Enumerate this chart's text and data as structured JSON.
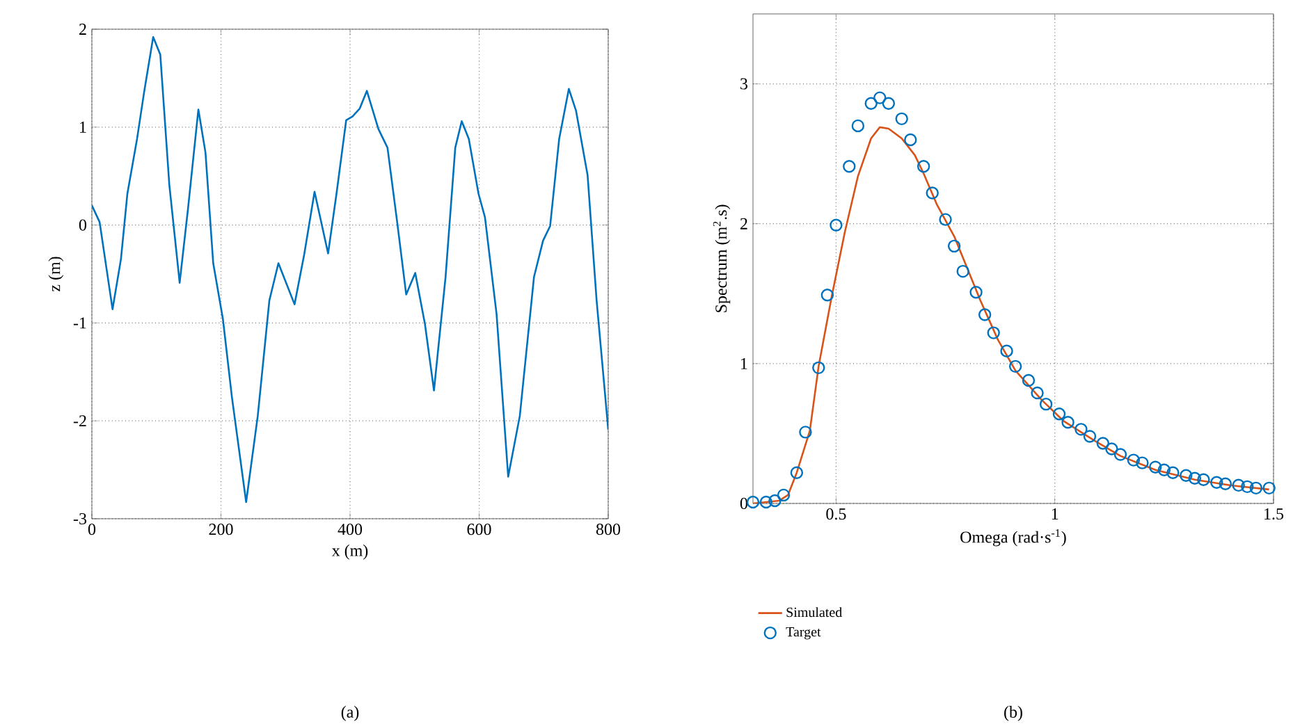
{
  "chart_data": [
    {
      "type": "line",
      "xlabel": "x (m)",
      "ylabel": "z (m)",
      "annotations": [
        "(a)"
      ],
      "xlim": [
        0,
        800
      ],
      "ylim": [
        -3,
        2
      ],
      "xticks": [
        0,
        200,
        400,
        600,
        800
      ],
      "yticks": [
        -3,
        -2,
        -1,
        0,
        1,
        2
      ],
      "grid": true,
      "series": [
        {
          "color": "#0072bd",
          "x": [
            0,
            12,
            32,
            45,
            55,
            70,
            81,
            95,
            106,
            120,
            136,
            149,
            165,
            176,
            188,
            203,
            217,
            239,
            257,
            275,
            289,
            314,
            329,
            345,
            366,
            379,
            394,
            404,
            415,
            426,
            444,
            458,
            473,
            487,
            501,
            516,
            530,
            548,
            563,
            573,
            584,
            599,
            609,
            627,
            645,
            663,
            685,
            699,
            710,
            724,
            739,
            750,
            768,
            782,
            800
          ],
          "values": [
            0.2,
            0.03,
            -0.86,
            -0.35,
            0.32,
            0.88,
            1.36,
            1.92,
            1.74,
            0.41,
            -0.59,
            0.17,
            1.18,
            0.74,
            -0.39,
            -0.96,
            -1.76,
            -2.83,
            -1.95,
            -0.77,
            -0.39,
            -0.81,
            -0.3,
            0.34,
            -0.29,
            0.32,
            1.07,
            1.11,
            1.19,
            1.37,
            0.98,
            0.79,
            0.03,
            -0.71,
            -0.49,
            -1.01,
            -1.69,
            -0.53,
            0.79,
            1.06,
            0.88,
            0.32,
            0.08,
            -0.91,
            -2.57,
            -1.95,
            -0.53,
            -0.16,
            -0.01,
            0.88,
            1.39,
            1.17,
            0.51,
            -0.77,
            -2.09
          ]
        }
      ]
    },
    {
      "type": "line",
      "xlabel": "Omega (rad·s$^{-1}$)",
      "ylabel": "Spectrum (m$^{2}$.s)",
      "annotations": [
        "(b)"
      ],
      "xlim": [
        0.31,
        1.5
      ],
      "ylim": [
        0,
        3.5
      ],
      "xticks": [
        0.5,
        1,
        1.5
      ],
      "yticks": [
        0,
        1,
        2,
        3
      ],
      "grid": true,
      "legend": "bottom",
      "series": [
        {
          "name": "Simulated",
          "type": "line",
          "color": "#d95319",
          "x": [
            0.31,
            0.34,
            0.37,
            0.39,
            0.41,
            0.44,
            0.46,
            0.49,
            0.52,
            0.55,
            0.58,
            0.6,
            0.62,
            0.65,
            0.68,
            0.7,
            0.73,
            0.77,
            0.8,
            0.83,
            0.87,
            0.91,
            0.97,
            1.02,
            1.09,
            1.15,
            1.23,
            1.32,
            1.4,
            1.49
          ],
          "values": [
            0,
            0.01,
            0.02,
            0.06,
            0.22,
            0.52,
            0.98,
            1.48,
            1.94,
            2.34,
            2.61,
            2.69,
            2.68,
            2.61,
            2.49,
            2.36,
            2.14,
            1.91,
            1.68,
            1.45,
            1.17,
            0.95,
            0.74,
            0.59,
            0.45,
            0.34,
            0.24,
            0.17,
            0.13,
            0.1
          ]
        },
        {
          "name": "Target",
          "type": "scatter",
          "marker": "circle",
          "color": "#0072bd",
          "x": [
            0.31,
            0.34,
            0.36,
            0.38,
            0.41,
            0.43,
            0.46,
            0.48,
            0.5,
            0.53,
            0.55,
            0.58,
            0.6,
            0.62,
            0.65,
            0.67,
            0.7,
            0.72,
            0.75,
            0.77,
            0.79,
            0.82,
            0.84,
            0.86,
            0.89,
            0.91,
            0.94,
            0.96,
            0.98,
            1.01,
            1.03,
            1.06,
            1.08,
            1.11,
            1.13,
            1.15,
            1.18,
            1.2,
            1.23,
            1.25,
            1.27,
            1.3,
            1.32,
            1.34,
            1.37,
            1.39,
            1.42,
            1.44,
            1.46,
            1.49
          ],
          "values": [
            0.01,
            0.01,
            0.02,
            0.06,
            0.22,
            0.51,
            0.97,
            1.49,
            1.99,
            2.41,
            2.7,
            2.86,
            2.9,
            2.86,
            2.75,
            2.6,
            2.41,
            2.22,
            2.03,
            1.84,
            1.66,
            1.51,
            1.35,
            1.22,
            1.09,
            0.98,
            0.88,
            0.79,
            0.71,
            0.64,
            0.58,
            0.53,
            0.48,
            0.43,
            0.39,
            0.35,
            0.31,
            0.29,
            0.26,
            0.24,
            0.22,
            0.2,
            0.18,
            0.17,
            0.15,
            0.14,
            0.13,
            0.12,
            0.11,
            0.11
          ]
        }
      ]
    }
  ]
}
